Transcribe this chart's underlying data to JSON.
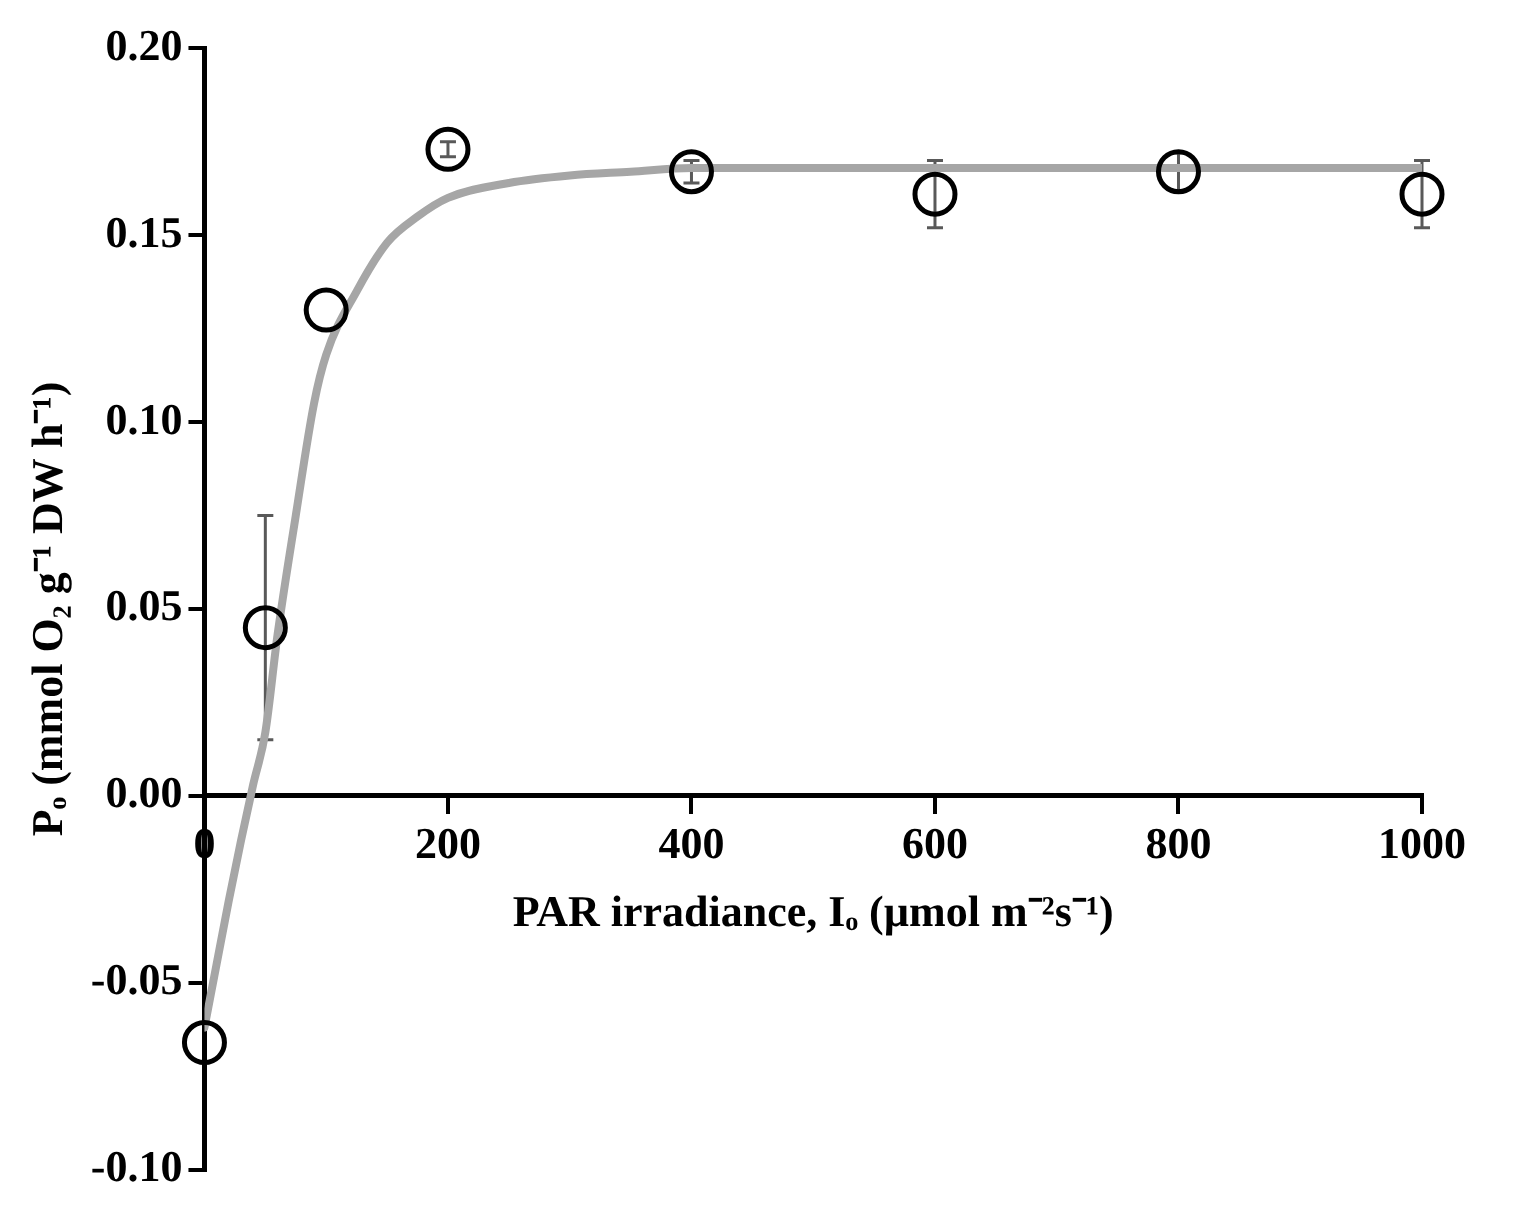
{
  "chart_data": {
    "type": "scatter",
    "xlabel": "PAR irradiance, Iₒ (µmol m⁻²s⁻¹)",
    "ylabel": "Pₒ (mmol O₂ g⁻¹ DW h⁻¹)",
    "xlim": [
      0,
      1000
    ],
    "xticks": [
      0,
      200,
      400,
      600,
      800,
      1000
    ],
    "ylim": [
      -0.1,
      0.2
    ],
    "yticks": [
      {
        "value": -0.1,
        "label": "-0.10"
      },
      {
        "value": -0.05,
        "label": "-0.05"
      },
      {
        "value": 0,
        "label": "0.00"
      },
      {
        "value": 0.05,
        "label": "0.05"
      },
      {
        "value": 0.1,
        "label": "0.10"
      },
      {
        "value": 0.15,
        "label": "0.15"
      },
      {
        "value": 0.2,
        "label": "0.20"
      }
    ],
    "grid": false,
    "legend": false,
    "series": [
      {
        "type": "line",
        "marker": "none",
        "color": "#a6a6a6",
        "x": [
          0,
          10,
          20,
          30,
          40,
          50,
          60,
          75,
          90,
          100,
          125,
          150,
          175,
          200,
          250,
          300,
          350,
          400,
          500,
          600,
          800,
          1000
        ],
        "values": [
          -0.062,
          -0.045,
          -0.028,
          -0.012,
          0.003,
          0.017,
          0.043,
          0.075,
          0.105,
          0.118,
          0.135,
          0.148,
          0.155,
          0.16,
          0.164,
          0.166,
          0.167,
          0.168,
          0.168,
          0.168,
          0.168,
          0.168
        ]
      },
      {
        "marker": "circle",
        "color": "#000000",
        "x": [
          0,
          50,
          100,
          200,
          400,
          600,
          800,
          1000
        ],
        "values": [
          -0.066,
          0.045,
          0.13,
          0.173,
          0.167,
          0.161,
          0.167,
          0.161
        ],
        "errors": [
          null,
          0.03,
          null,
          0.002,
          0.003,
          0.009,
          0.005,
          0.009
        ]
      }
    ]
  }
}
